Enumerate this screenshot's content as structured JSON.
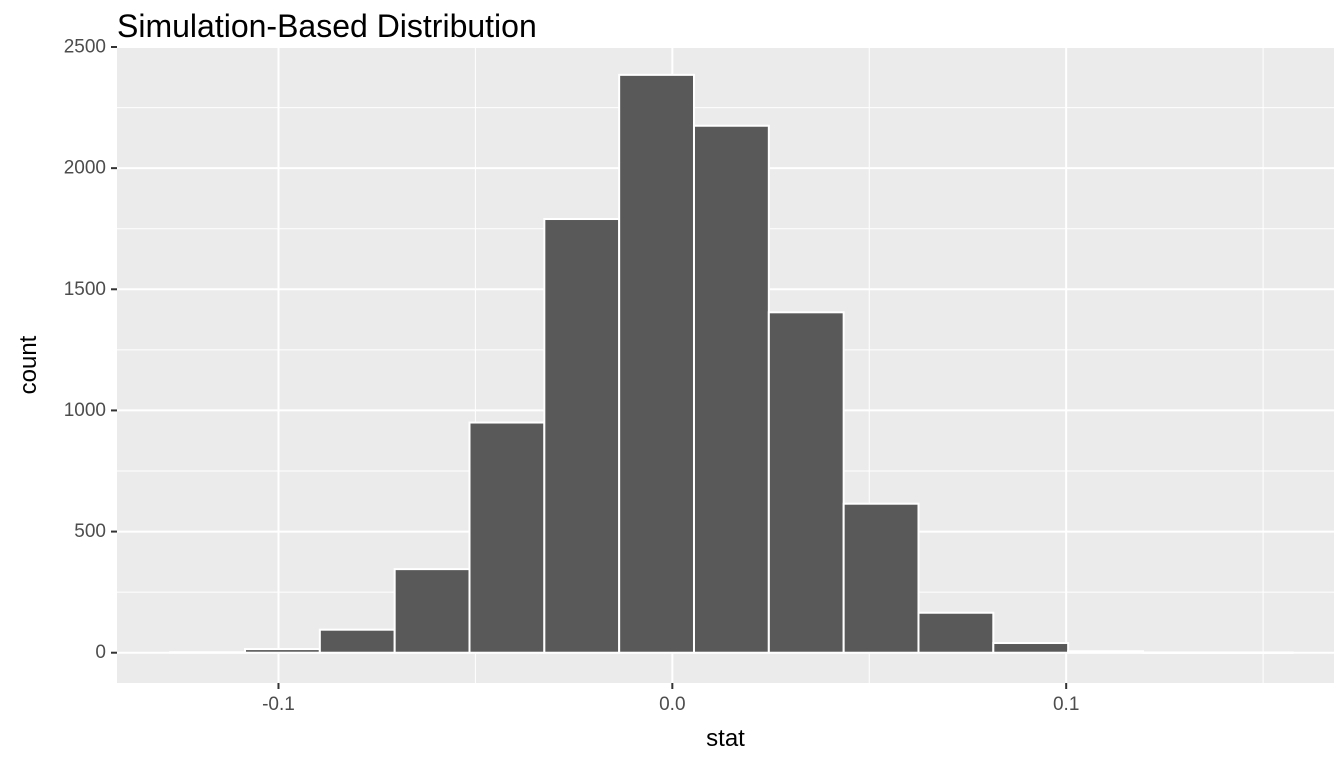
{
  "chart_data": {
    "type": "bar",
    "title": "Simulation-Based Distribution",
    "xlabel": "stat",
    "ylabel": "count",
    "xlim": [
      -0.141,
      0.168
    ],
    "ylim": [
      -125,
      2500
    ],
    "grid": true,
    "colors": {
      "panel": "#ebebeb",
      "grid": "#ffffff",
      "bar_fill": "#595959",
      "bar_stroke": "#ffffff",
      "tick_text": "#4d4d4d",
      "tick_mark": "#333333"
    },
    "x_ticks": [
      {
        "value": -0.1,
        "label": "-0.1"
      },
      {
        "value": 0.0,
        "label": "0.0"
      },
      {
        "value": 0.1,
        "label": "0.1"
      }
    ],
    "y_ticks": [
      {
        "value": 0,
        "label": "0"
      },
      {
        "value": 500,
        "label": "500"
      },
      {
        "value": 1000,
        "label": "1000"
      },
      {
        "value": 1500,
        "label": "1500"
      },
      {
        "value": 2000,
        "label": "2000"
      },
      {
        "value": 2500,
        "label": "2500"
      }
    ],
    "bins": [
      {
        "x0": -0.1275,
        "x1": -0.1085,
        "count": 2
      },
      {
        "x0": -0.1085,
        "x1": -0.0895,
        "count": 15
      },
      {
        "x0": -0.0895,
        "x1": -0.0705,
        "count": 95
      },
      {
        "x0": -0.0705,
        "x1": -0.0515,
        "count": 345
      },
      {
        "x0": -0.0515,
        "x1": -0.0325,
        "count": 950
      },
      {
        "x0": -0.0325,
        "x1": -0.0135,
        "count": 1790
      },
      {
        "x0": -0.0135,
        "x1": 0.0055,
        "count": 2385
      },
      {
        "x0": 0.0055,
        "x1": 0.0245,
        "count": 2175
      },
      {
        "x0": 0.0245,
        "x1": 0.0435,
        "count": 1405
      },
      {
        "x0": 0.0435,
        "x1": 0.0625,
        "count": 615
      },
      {
        "x0": 0.0625,
        "x1": 0.0815,
        "count": 165
      },
      {
        "x0": 0.0815,
        "x1": 0.1005,
        "count": 40
      },
      {
        "x0": 0.1005,
        "x1": 0.1195,
        "count": 6
      },
      {
        "x0": 0.1195,
        "x1": 0.1385,
        "count": 1
      },
      {
        "x0": 0.1385,
        "x1": 0.1575,
        "count": 1
      }
    ]
  }
}
